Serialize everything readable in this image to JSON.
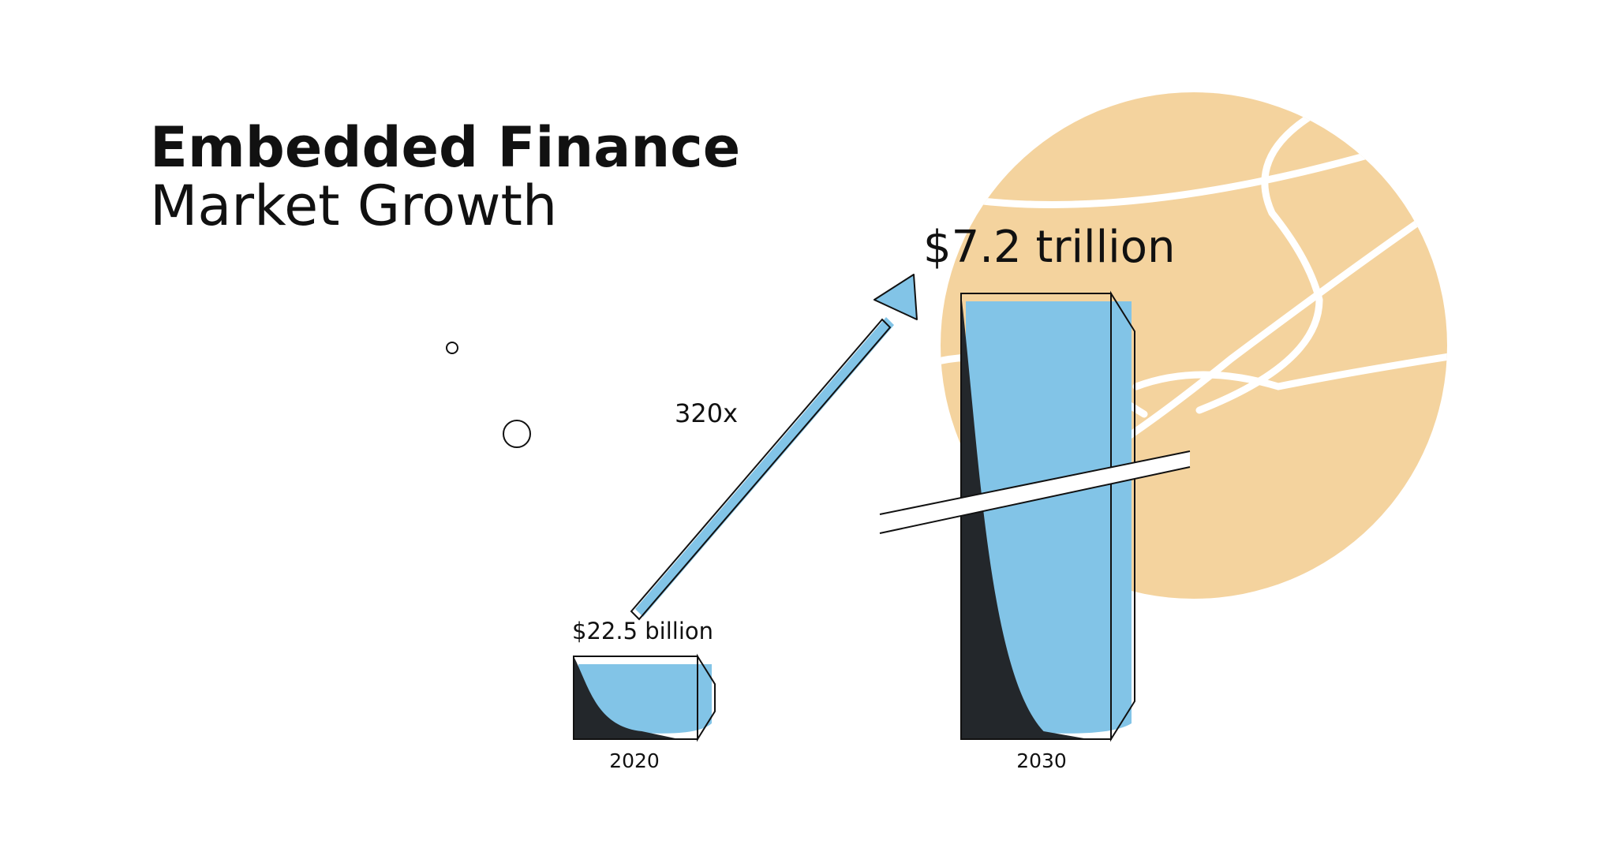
{
  "title_line1": "Embedded Finance",
  "title_line2": "Market Growth",
  "chart_data": {
    "type": "bar",
    "categories": [
      "2020",
      "2030"
    ],
    "values": [
      22.5,
      7200
    ],
    "unit": "billion USD",
    "value_labels": [
      "$22.5 billion",
      "$7.2 trillion"
    ],
    "growth_label": "320x",
    "grid": false,
    "legend": "none"
  },
  "colors": {
    "bar_fill": "#82C4E7",
    "bar_shadow": "#23272B",
    "outline": "#111111",
    "globe": "#F4D39E",
    "background": "#FFFFFF"
  }
}
